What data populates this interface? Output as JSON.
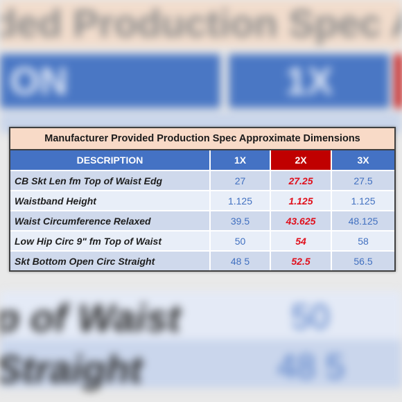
{
  "title": "Manufacturer Provided Production Spec Approximate Dimensions",
  "columns": [
    "DESCRIPTION",
    "1X",
    "2X",
    "3X"
  ],
  "highlight_column": "2X",
  "colors": {
    "header_blue": "#4472c4",
    "header_red": "#c00000",
    "title_bg": "#f8dac7",
    "value_blue": "#4170c0",
    "value_red": "#e0101c"
  },
  "rows": [
    {
      "label": "CB Skt Len fm Top of Waist Edg",
      "values": [
        "27",
        "27.25",
        "27.5"
      ]
    },
    {
      "label": "Waistband Height",
      "values": [
        "1.125",
        "1.125",
        "1.125"
      ]
    },
    {
      "label": "Waist Circumference Relaxed",
      "values": [
        "39.5",
        "43.625",
        "48.125"
      ]
    },
    {
      "label": "Low Hip Circ 9\" fm Top of Waist",
      "values": [
        "50",
        "54",
        "58"
      ]
    },
    {
      "label": "Skt Bottom Open Circ Straight",
      "values": [
        "48 5",
        "52.5",
        "56.5"
      ]
    }
  ]
}
